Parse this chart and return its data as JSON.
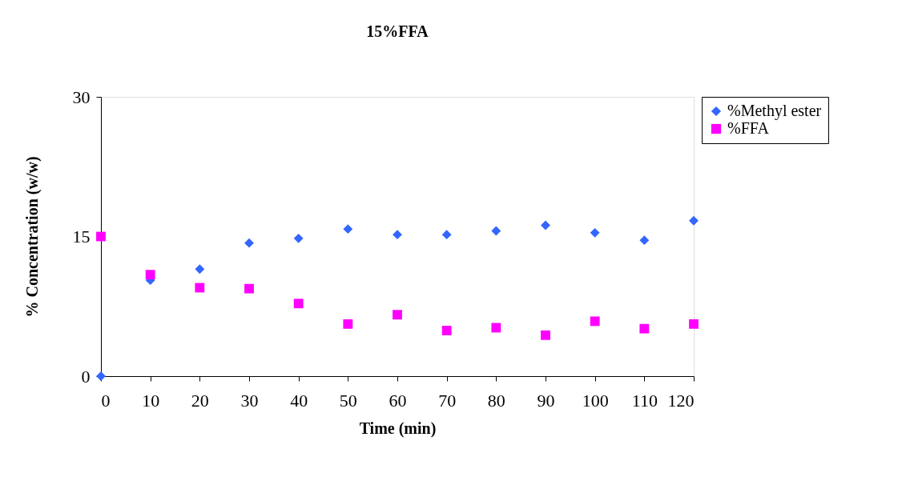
{
  "chart_data": {
    "type": "scatter",
    "title": "15%FFA",
    "xlabel": "Time (min)",
    "ylabel": "% Concentration (w/w)",
    "x": [
      0,
      10,
      20,
      30,
      40,
      50,
      60,
      70,
      80,
      90,
      100,
      110,
      120
    ],
    "series": [
      {
        "name": "%Methyl ester",
        "color": "#3366ff",
        "marker": "diamond",
        "values": [
          0,
          10.3,
          11.5,
          14.3,
          14.8,
          15.8,
          15.2,
          15.2,
          15.6,
          16.2,
          15.4,
          14.6,
          16.7
        ]
      },
      {
        "name": "%FFA",
        "color": "#ff00ff",
        "marker": "square",
        "values": [
          15.0,
          10.9,
          9.5,
          9.4,
          7.8,
          5.6,
          6.6,
          4.9,
          5.2,
          4.4,
          5.9,
          5.1,
          5.6
        ]
      }
    ],
    "xlim": [
      0,
      120
    ],
    "xticks": [
      0,
      10,
      20,
      30,
      40,
      50,
      60,
      70,
      80,
      90,
      100,
      110,
      120
    ],
    "ylim": [
      0,
      30
    ],
    "yticks": [
      0,
      15,
      30
    ],
    "grid": false,
    "legend": "top right"
  }
}
